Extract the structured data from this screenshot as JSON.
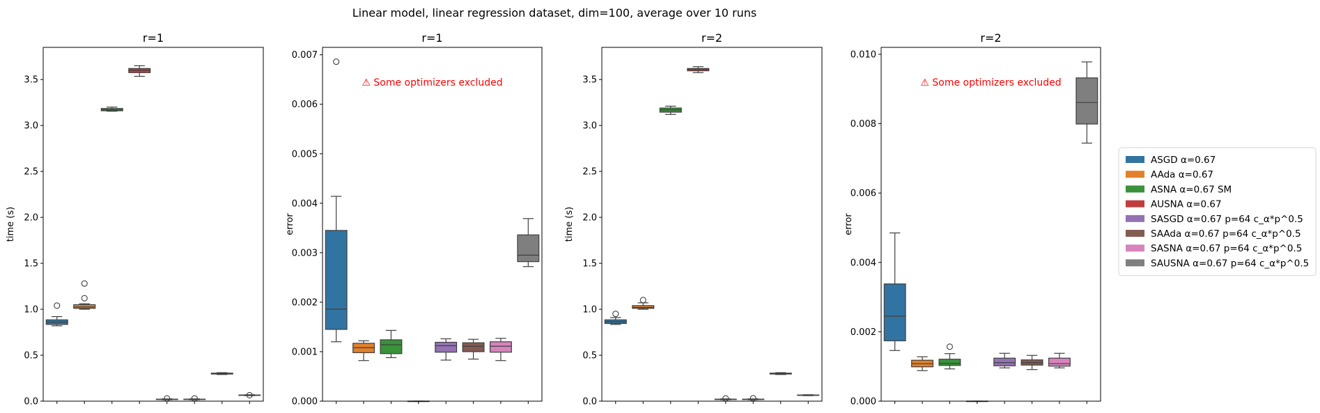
{
  "figure": {
    "suptitle": "Linear model, linear regression dataset, dim=100, average over 10 runs"
  },
  "legend": [
    {
      "label": "ASGD α=0.67",
      "color": "#3274a1"
    },
    {
      "label": "AAda α=0.67",
      "color": "#e1812c"
    },
    {
      "label": "ASNA α=0.67 SM",
      "color": "#3a923a"
    },
    {
      "label": "AUSNA α=0.67",
      "color": "#c03d3e"
    },
    {
      "label": "SASGD α=0.67 p=64 c_α*p^0.5",
      "color": "#9372b2"
    },
    {
      "label": "SAAda α=0.67 p=64 c_α*p^0.5",
      "color": "#845b53"
    },
    {
      "label": "SASNA α=0.67 p=64 c_α*p^0.5",
      "color": "#d684bd"
    },
    {
      "label": "SAUSNA α=0.67 p=64 c_α*p^0.5",
      "color": "#7f7f7f"
    }
  ],
  "chart_data": [
    {
      "type": "box",
      "title": "r=1",
      "ylabel": "time (s)",
      "ylim": [
        0,
        3.85
      ],
      "yticks": [
        0,
        0.5,
        1.0,
        1.5,
        2.0,
        2.5,
        3.0,
        3.5
      ],
      "yticklabels": [
        "0.0",
        "0.5",
        "1.0",
        "1.5",
        "2.0",
        "2.5",
        "3.0",
        "3.5"
      ],
      "note": "",
      "boxes": [
        {
          "series": 0,
          "q1": 0.835,
          "median": 0.86,
          "q3": 0.885,
          "wlo": 0.82,
          "whi": 0.92,
          "outliers": [
            1.04
          ]
        },
        {
          "series": 1,
          "q1": 1.01,
          "median": 1.025,
          "q3": 1.05,
          "wlo": 1.0,
          "whi": 1.06,
          "outliers": [
            1.12,
            1.28
          ]
        },
        {
          "series": 2,
          "q1": 3.16,
          "median": 3.17,
          "q3": 3.185,
          "wlo": 3.155,
          "whi": 3.2,
          "outliers": []
        },
        {
          "series": 3,
          "q1": 3.575,
          "median": 3.6,
          "q3": 3.62,
          "wlo": 3.535,
          "whi": 3.65,
          "outliers": []
        },
        {
          "series": 4,
          "q1": 0.018,
          "median": 0.02,
          "q3": 0.022,
          "wlo": 0.015,
          "whi": 0.025,
          "outliers": [
            0.03
          ]
        },
        {
          "series": 5,
          "q1": 0.018,
          "median": 0.02,
          "q3": 0.022,
          "wlo": 0.015,
          "whi": 0.025,
          "outliers": [
            0.03
          ]
        },
        {
          "series": 6,
          "q1": 0.295,
          "median": 0.3,
          "q3": 0.305,
          "wlo": 0.29,
          "whi": 0.31,
          "outliers": []
        },
        {
          "series": 7,
          "q1": 0.063,
          "median": 0.065,
          "q3": 0.067,
          "wlo": 0.06,
          "whi": 0.07,
          "outliers": [
            0.065
          ]
        }
      ]
    },
    {
      "type": "box",
      "title": "r=1",
      "ylabel": "error",
      "ylim": [
        0,
        0.00715
      ],
      "yticks": [
        0,
        0.001,
        0.002,
        0.003,
        0.004,
        0.005,
        0.006,
        0.007
      ],
      "yticklabels": [
        "0.000",
        "0.001",
        "0.002",
        "0.003",
        "0.004",
        "0.005",
        "0.006",
        "0.007"
      ],
      "note": "⚠ Some optimizers excluded",
      "boxes": [
        {
          "series": 0,
          "q1": 0.00145,
          "median": 0.00186,
          "q3": 0.00345,
          "wlo": 0.0012,
          "whi": 0.00414,
          "outliers": [
            0.00686
          ]
        },
        {
          "series": 1,
          "q1": 0.00098,
          "median": 0.00108,
          "q3": 0.00117,
          "wlo": 0.00082,
          "whi": 0.00122,
          "outliers": []
        },
        {
          "series": 2,
          "q1": 0.00096,
          "median": 0.00114,
          "q3": 0.00124,
          "wlo": 0.00088,
          "whi": 0.00143,
          "outliers": []
        },
        {
          "series": 3,
          "q1": 0.0,
          "median": 0.0,
          "q3": 0.0,
          "wlo": 0.0,
          "whi": 0.0,
          "outliers": []
        },
        {
          "series": 4,
          "q1": 0.00099,
          "median": 0.00112,
          "q3": 0.00119,
          "wlo": 0.00083,
          "whi": 0.00126,
          "outliers": []
        },
        {
          "series": 5,
          "q1": 0.001,
          "median": 0.00111,
          "q3": 0.00118,
          "wlo": 0.00085,
          "whi": 0.00125,
          "outliers": []
        },
        {
          "series": 6,
          "q1": 0.00099,
          "median": 0.00111,
          "q3": 0.0012,
          "wlo": 0.00082,
          "whi": 0.00127,
          "outliers": []
        },
        {
          "series": 7,
          "q1": 0.00282,
          "median": 0.00295,
          "q3": 0.00336,
          "wlo": 0.00272,
          "whi": 0.00369,
          "outliers": []
        }
      ]
    },
    {
      "type": "box",
      "title": "r=2",
      "ylabel": "time (s)",
      "ylim": [
        0,
        3.85
      ],
      "yticks": [
        0,
        0.5,
        1.0,
        1.5,
        2.0,
        2.5,
        3.0,
        3.5
      ],
      "yticklabels": [
        "0.0",
        "0.5",
        "1.0",
        "1.5",
        "2.0",
        "2.5",
        "3.0",
        "3.5"
      ],
      "note": "",
      "boxes": [
        {
          "series": 0,
          "q1": 0.845,
          "median": 0.865,
          "q3": 0.885,
          "wlo": 0.835,
          "whi": 0.91,
          "outliers": [
            0.95
          ]
        },
        {
          "series": 1,
          "q1": 1.01,
          "median": 1.02,
          "q3": 1.04,
          "wlo": 1.0,
          "whi": 1.07,
          "outliers": [
            1.1
          ]
        },
        {
          "series": 2,
          "q1": 3.145,
          "median": 3.17,
          "q3": 3.19,
          "wlo": 3.12,
          "whi": 3.21,
          "outliers": []
        },
        {
          "series": 3,
          "q1": 3.595,
          "median": 3.61,
          "q3": 3.62,
          "wlo": 3.575,
          "whi": 3.64,
          "outliers": []
        },
        {
          "series": 4,
          "q1": 0.018,
          "median": 0.02,
          "q3": 0.022,
          "wlo": 0.015,
          "whi": 0.025,
          "outliers": [
            0.03
          ]
        },
        {
          "series": 5,
          "q1": 0.018,
          "median": 0.02,
          "q3": 0.022,
          "wlo": 0.015,
          "whi": 0.025,
          "outliers": [
            0.032
          ]
        },
        {
          "series": 6,
          "q1": 0.295,
          "median": 0.3,
          "q3": 0.305,
          "wlo": 0.29,
          "whi": 0.31,
          "outliers": []
        },
        {
          "series": 7,
          "q1": 0.063,
          "median": 0.065,
          "q3": 0.067,
          "wlo": 0.06,
          "whi": 0.07,
          "outliers": []
        }
      ]
    },
    {
      "type": "box",
      "title": "r=2",
      "ylabel": "error",
      "ylim": [
        0,
        0.0102
      ],
      "yticks": [
        0,
        0.002,
        0.004,
        0.006,
        0.008,
        0.01
      ],
      "yticklabels": [
        "0.000",
        "0.002",
        "0.004",
        "0.006",
        "0.008",
        "0.010"
      ],
      "note": "⚠ Some optimizers excluded",
      "boxes": [
        {
          "series": 0,
          "q1": 0.00174,
          "median": 0.00245,
          "q3": 0.00338,
          "wlo": 0.00146,
          "whi": 0.00485,
          "outliers": []
        },
        {
          "series": 1,
          "q1": 0.00099,
          "median": 0.00108,
          "q3": 0.00118,
          "wlo": 0.00088,
          "whi": 0.00128,
          "outliers": []
        },
        {
          "series": 2,
          "q1": 0.00103,
          "median": 0.00109,
          "q3": 0.00121,
          "wlo": 0.00093,
          "whi": 0.00137,
          "outliers": [
            0.00157
          ]
        },
        {
          "series": 3,
          "q1": 0.0,
          "median": 0.0,
          "q3": 0.0,
          "wlo": 0.0,
          "whi": 0.0,
          "outliers": []
        },
        {
          "series": 4,
          "q1": 0.00102,
          "median": 0.00111,
          "q3": 0.00124,
          "wlo": 0.00096,
          "whi": 0.00138,
          "outliers": []
        },
        {
          "series": 5,
          "q1": 0.00104,
          "median": 0.00111,
          "q3": 0.00119,
          "wlo": 0.00091,
          "whi": 0.00132,
          "outliers": []
        },
        {
          "series": 6,
          "q1": 0.00101,
          "median": 0.00108,
          "q3": 0.00124,
          "wlo": 0.00096,
          "whi": 0.00138,
          "outliers": []
        },
        {
          "series": 7,
          "q1": 0.00799,
          "median": 0.00861,
          "q3": 0.00932,
          "wlo": 0.00744,
          "whi": 0.00978,
          "outliers": []
        }
      ]
    }
  ]
}
